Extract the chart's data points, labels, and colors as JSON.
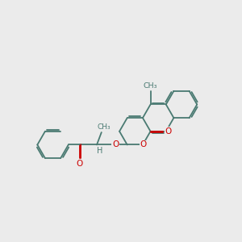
{
  "bg_color": "#ebebeb",
  "bond_color": "#4a7a72",
  "red_color": "#cc0000",
  "lw": 1.3,
  "dbo": 0.05,
  "r": 0.5,
  "figsize": [
    3.0,
    3.0
  ],
  "dpi": 100,
  "xlim": [
    0.2,
    8.0
  ],
  "ylim": [
    2.2,
    7.8
  ]
}
